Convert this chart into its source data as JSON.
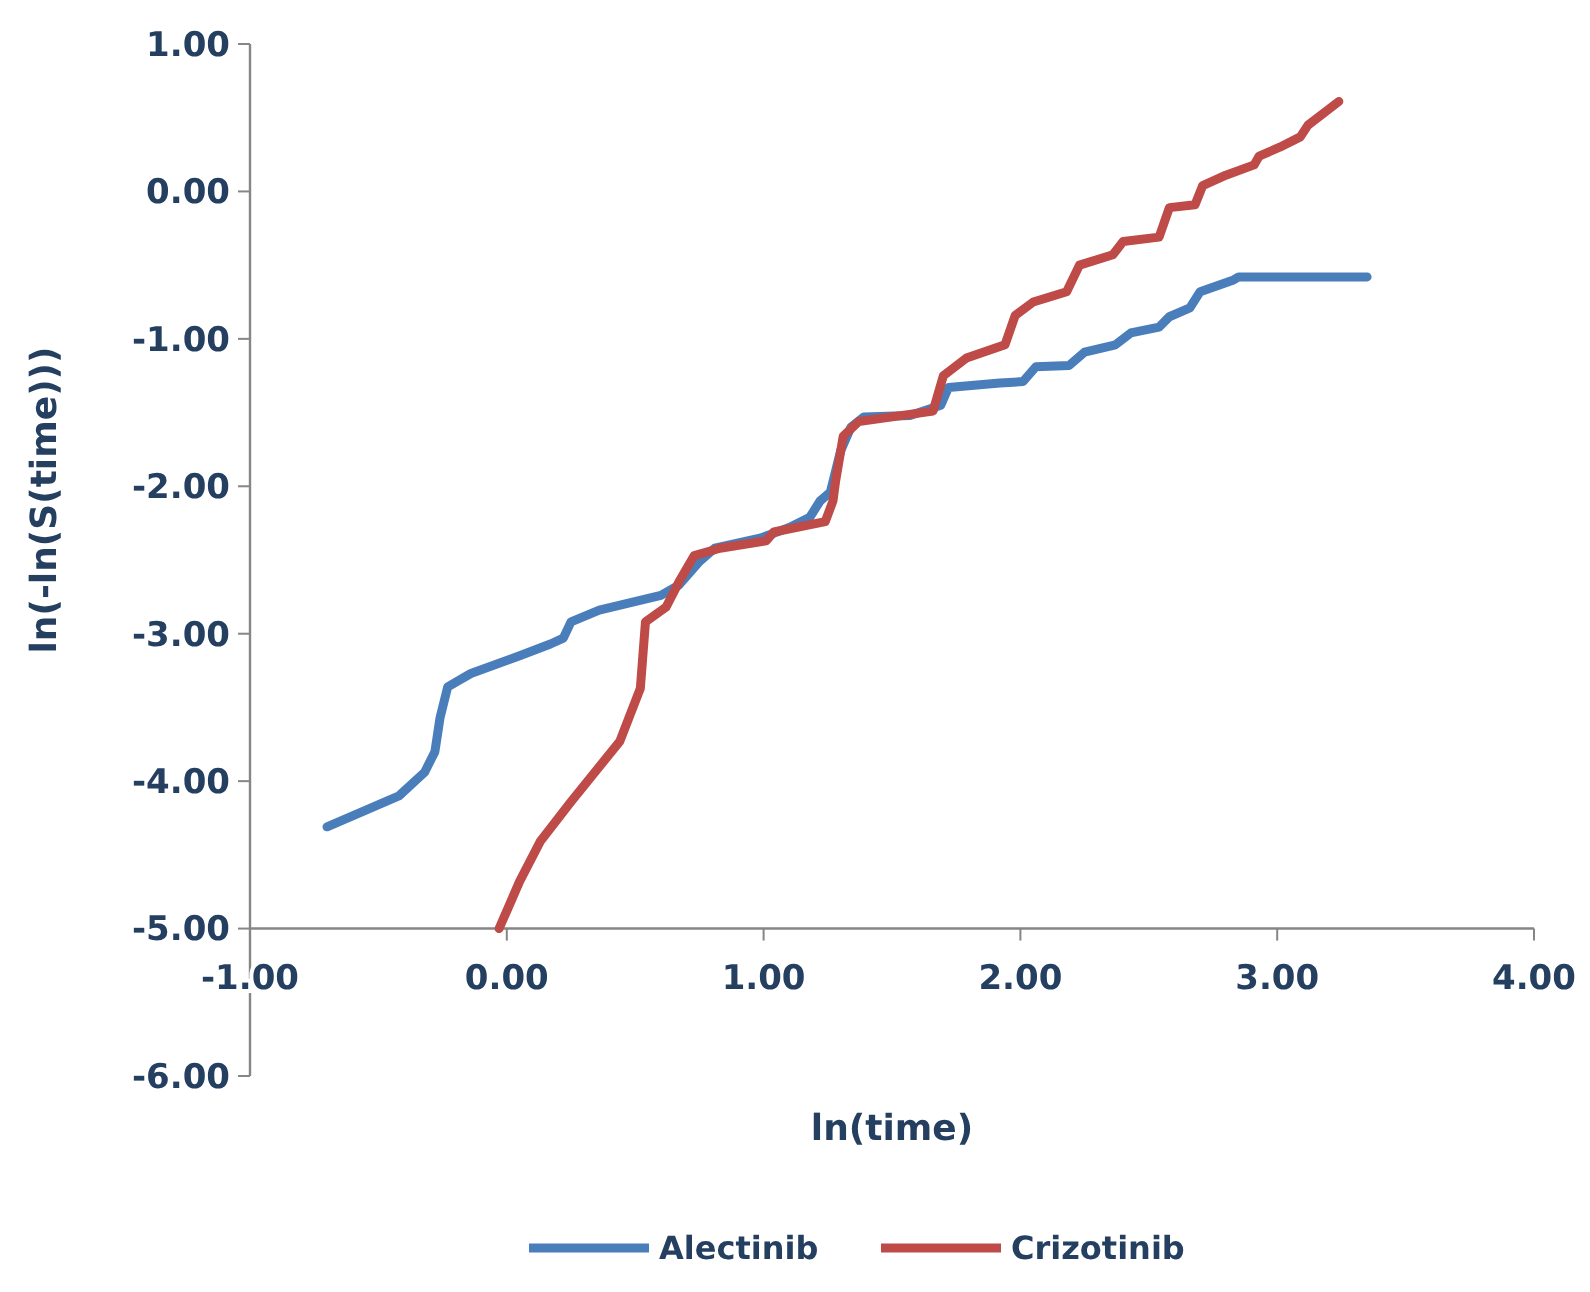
{
  "chart_data": {
    "type": "line",
    "xlabel": "ln(time)",
    "ylabel": "ln(-ln(S(time)))",
    "xlim": [
      -1,
      4
    ],
    "ylim": [
      -6,
      1
    ],
    "xticks": [
      {
        "value": -1,
        "label": "-1.00"
      },
      {
        "value": 0,
        "label": "0.00"
      },
      {
        "value": 1,
        "label": "1.00"
      },
      {
        "value": 2,
        "label": "2.00"
      },
      {
        "value": 3,
        "label": "3.00"
      },
      {
        "value": 4,
        "label": "4.00"
      }
    ],
    "yticks": [
      {
        "value": -6,
        "label": "-6.00"
      },
      {
        "value": -5,
        "label": "-5.00"
      },
      {
        "value": -4,
        "label": "-4.00"
      },
      {
        "value": -3,
        "label": "-3.00"
      },
      {
        "value": -2,
        "label": "-2.00"
      },
      {
        "value": -1,
        "label": "-1.00"
      },
      {
        "value": 0,
        "label": "0.00"
      },
      {
        "value": 1,
        "label": "1.00"
      }
    ],
    "grid": false,
    "legend": "bottom",
    "marker": "none",
    "line_style": "solid",
    "series": [
      {
        "name": "Alectinib",
        "color": "#4a7ebb",
        "x": [
          -0.7,
          -0.42,
          -0.32,
          -0.28,
          -0.26,
          -0.23,
          -0.14,
          0.05,
          0.17,
          0.22,
          0.25,
          0.36,
          0.6,
          0.67,
          0.71,
          0.75,
          0.81,
          0.99,
          1.1,
          1.18,
          1.22,
          1.26,
          1.3,
          1.34,
          1.39,
          1.57,
          1.69,
          1.72,
          1.92,
          2.01,
          2.06,
          2.19,
          2.25,
          2.37,
          2.43,
          2.54,
          2.58,
          2.66,
          2.7,
          2.83,
          2.85,
          3.35
        ],
        "values": [
          -4.31,
          -4.1,
          -3.94,
          -3.8,
          -3.57,
          -3.36,
          -3.27,
          -3.15,
          -3.07,
          -3.03,
          -2.92,
          -2.84,
          -2.74,
          -2.67,
          -2.59,
          -2.51,
          -2.42,
          -2.35,
          -2.28,
          -2.21,
          -2.1,
          -2.04,
          -1.76,
          -1.6,
          -1.53,
          -1.52,
          -1.45,
          -1.33,
          -1.3,
          -1.29,
          -1.19,
          -1.18,
          -1.09,
          -1.04,
          -0.96,
          -0.92,
          -0.85,
          -0.79,
          -0.68,
          -0.6,
          -0.58,
          -0.58
        ]
      },
      {
        "name": "Crizotinib",
        "color": "#be4b48",
        "x": [
          -0.03,
          0.05,
          0.13,
          0.25,
          0.44,
          0.52,
          0.54,
          0.62,
          0.67,
          0.73,
          0.83,
          1.01,
          1.04,
          1.24,
          1.27,
          1.28,
          1.31,
          1.37,
          1.66,
          1.7,
          1.79,
          1.94,
          1.98,
          2.05,
          2.18,
          2.23,
          2.36,
          2.4,
          2.54,
          2.58,
          2.68,
          2.71,
          2.8,
          2.91,
          2.93,
          3.01,
          3.09,
          3.12,
          3.24
        ],
        "values": [
          -5.0,
          -4.68,
          -4.41,
          -4.14,
          -3.73,
          -3.37,
          -2.92,
          -2.82,
          -2.65,
          -2.47,
          -2.42,
          -2.37,
          -2.31,
          -2.24,
          -2.1,
          -1.97,
          -1.66,
          -1.56,
          -1.49,
          -1.25,
          -1.13,
          -1.04,
          -0.84,
          -0.75,
          -0.68,
          -0.5,
          -0.43,
          -0.34,
          -0.31,
          -0.11,
          -0.09,
          0.04,
          0.11,
          0.18,
          0.24,
          0.3,
          0.37,
          0.45,
          0.61
        ]
      }
    ]
  }
}
